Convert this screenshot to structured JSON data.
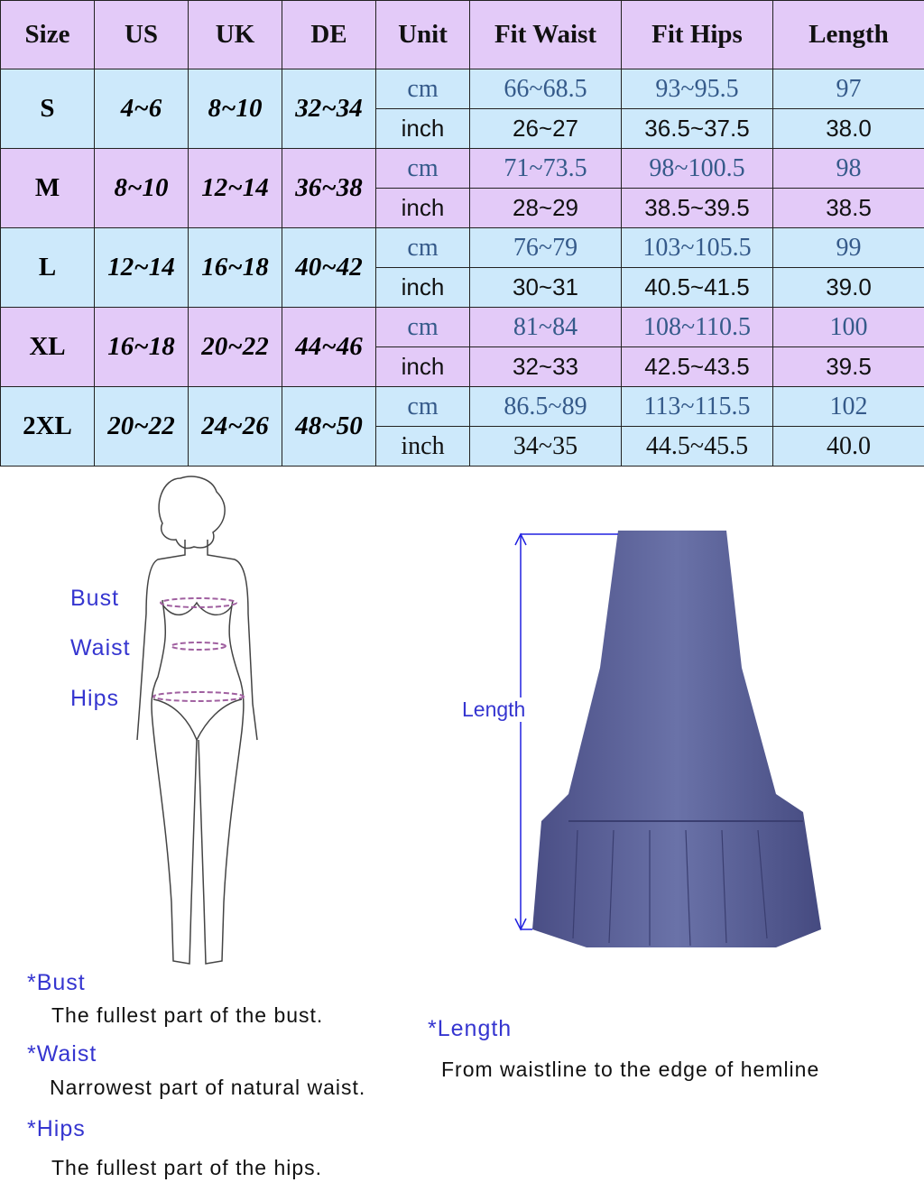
{
  "headers": [
    "Size",
    "US",
    "UK",
    "DE",
    "Unit",
    "Fit Waist",
    "Fit Hips",
    "Length"
  ],
  "rows": [
    {
      "size": "S",
      "us": "4~6",
      "uk": "8~10",
      "de": "32~34",
      "cm": {
        "unit": "cm",
        "waist": "66~68.5",
        "hips": "93~95.5",
        "length": "97"
      },
      "inch": {
        "unit": "inch",
        "waist": "26~27",
        "hips": "36.5~37.5",
        "length": "38.0"
      }
    },
    {
      "size": "M",
      "us": "8~10",
      "uk": "12~14",
      "de": "36~38",
      "cm": {
        "unit": "cm",
        "waist": "71~73.5",
        "hips": "98~100.5",
        "length": "98"
      },
      "inch": {
        "unit": "inch",
        "waist": "28~29",
        "hips": "38.5~39.5",
        "length": "38.5"
      }
    },
    {
      "size": "L",
      "us": "12~14",
      "uk": "16~18",
      "de": "40~42",
      "cm": {
        "unit": "cm",
        "waist": "76~79",
        "hips": "103~105.5",
        "length": "99"
      },
      "inch": {
        "unit": "inch",
        "waist": "30~31",
        "hips": "40.5~41.5",
        "length": "39.0"
      }
    },
    {
      "size": "XL",
      "us": "16~18",
      "uk": "20~22",
      "de": "44~46",
      "cm": {
        "unit": "cm",
        "waist": "81~84",
        "hips": "108~110.5",
        "length": "100"
      },
      "inch": {
        "unit": "inch",
        "waist": "32~33",
        "hips": "42.5~43.5",
        "length": "39.5"
      }
    },
    {
      "size": "2XL",
      "us": "20~22",
      "uk": "24~26",
      "de": "48~50",
      "cm": {
        "unit": "cm",
        "waist": "86.5~89",
        "hips": "113~115.5",
        "length": "102"
      },
      "inch": {
        "unit": "inch",
        "waist": "34~35",
        "hips": "44.5~45.5",
        "length": "40.0"
      }
    }
  ],
  "figure": {
    "bust": "Bust",
    "waist": "Waist",
    "hips": "Hips",
    "length": "Length"
  },
  "notes": {
    "bust_title": "*Bust",
    "bust_desc": "The fullest part of the bust.",
    "waist_title": "*Waist",
    "waist_desc": "Narrowest part of natural waist.",
    "hips_title": "*Hips",
    "hips_desc": "The fullest part of the hips.",
    "length_title": "*Length",
    "length_desc": "From waistline to the edge of hemline"
  },
  "colors": {
    "header_bg": "#e3caf8",
    "alt_bg": "#cde9fb",
    "cm_text": "#355a8a",
    "label_blue": "#3535d0",
    "skirt": "#5a5f92"
  }
}
